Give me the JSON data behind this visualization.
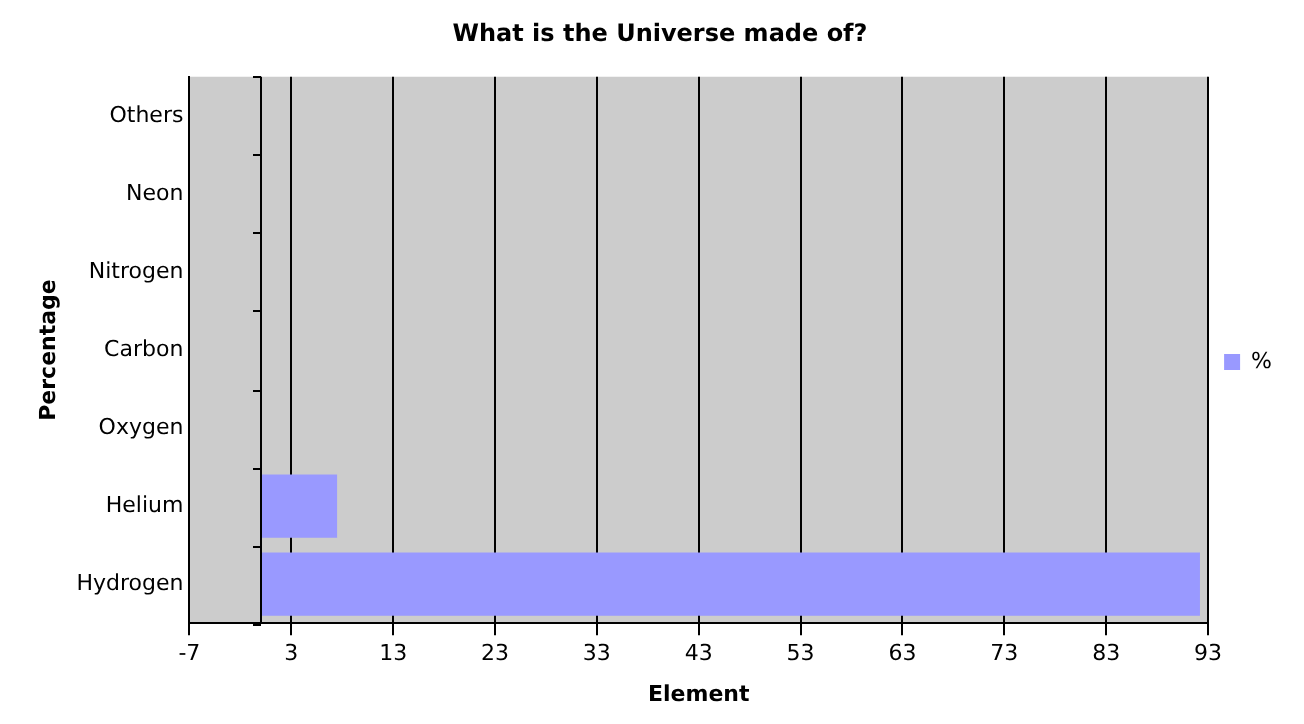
{
  "chart_data": {
    "type": "bar",
    "orientation": "horizontal",
    "title": "What is the Universe made of?",
    "xlabel": "Element",
    "ylabel": "Percentage",
    "categories": [
      "Others",
      "Neon",
      "Nitrogen",
      "Carbon",
      "Oxygen",
      "Helium",
      "Hydrogen"
    ],
    "series": [
      {
        "name": "%",
        "color": "#9999ff",
        "values": [
          0,
          0,
          0,
          0,
          0,
          7.5,
          92.2
        ]
      }
    ],
    "xlim": [
      -7,
      93
    ],
    "xticks": [
      -7,
      3,
      13,
      23,
      33,
      43,
      53,
      63,
      73,
      83,
      93
    ],
    "grid": "x",
    "legend": "right"
  }
}
